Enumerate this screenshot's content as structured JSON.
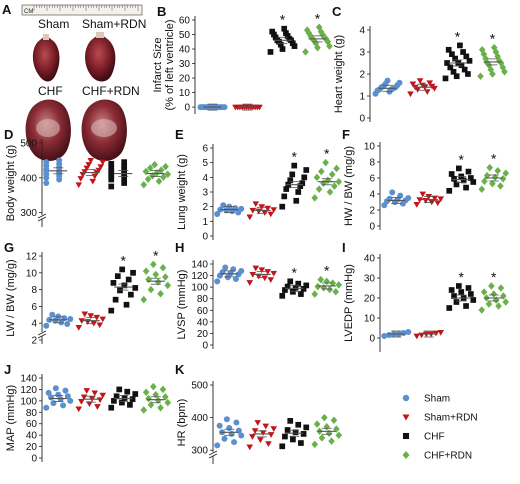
{
  "colors": {
    "sham": "#5b8fd0",
    "sham_rdn": "#c0161a",
    "chf": "#111111",
    "chf_rdn": "#6ab04c"
  },
  "photo": {
    "label": "A",
    "ruler_text": "CM",
    "hearts": [
      "Sham",
      "Sham+RDN",
      "CHF",
      "CHF+RDN"
    ]
  },
  "legend": [
    {
      "name": "Sham",
      "color": "#5b8fd0",
      "shape": "circle"
    },
    {
      "name": "Sham+RDN",
      "color": "#c0161a",
      "shape": "triangle"
    },
    {
      "name": "CHF",
      "color": "#111111",
      "shape": "square"
    },
    {
      "name": "CHF+RDN",
      "color": "#6ab04c",
      "shape": "diamond"
    }
  ],
  "chart_data": [
    {
      "type": "scatter",
      "label": "B",
      "ylabel": "Infarct Size (% of left ventricle)",
      "ylim": [
        -2,
        60
      ],
      "ticks": [
        0,
        10,
        20,
        30,
        40,
        50,
        60
      ],
      "groups": [
        {
          "name": "Sham",
          "mean": 0,
          "values": [
            0,
            0,
            0,
            0,
            0,
            0,
            0,
            0,
            0,
            0,
            0,
            0
          ]
        },
        {
          "name": "Sham+RDN",
          "mean": 0,
          "values": [
            0,
            0,
            0,
            0,
            0,
            0,
            0,
            0,
            0,
            0,
            0,
            0
          ]
        },
        {
          "name": "CHF",
          "mean": 46,
          "star": true,
          "values": [
            38,
            40,
            42,
            43,
            44,
            45,
            46,
            46,
            47,
            48,
            49,
            50,
            51,
            52,
            54
          ]
        },
        {
          "name": "CHF+RDN",
          "mean": 47,
          "star": true,
          "values": [
            38,
            41,
            42,
            44,
            45,
            46,
            47,
            47,
            48,
            49,
            50,
            51,
            52,
            53,
            55
          ]
        }
      ]
    },
    {
      "type": "scatter",
      "label": "C",
      "ylabel": "Heart weight (g)",
      "ylim": [
        0,
        4
      ],
      "ticks": [
        0,
        1,
        2,
        3,
        4
      ],
      "groups": [
        {
          "name": "Sham",
          "mean": 1.35,
          "values": [
            1.1,
            1.2,
            1.25,
            1.3,
            1.3,
            1.35,
            1.4,
            1.4,
            1.45,
            1.5,
            1.55,
            1.6,
            1.7
          ]
        },
        {
          "name": "Sham+RDN",
          "mean": 1.4,
          "values": [
            1.1,
            1.2,
            1.3,
            1.35,
            1.4,
            1.4,
            1.45,
            1.5,
            1.55,
            1.6,
            1.7
          ]
        },
        {
          "name": "CHF",
          "mean": 2.5,
          "star": true,
          "values": [
            1.8,
            1.9,
            2.0,
            2.1,
            2.2,
            2.3,
            2.4,
            2.5,
            2.5,
            2.6,
            2.7,
            2.8,
            2.9,
            3.0,
            3.1,
            3.3
          ]
        },
        {
          "name": "CHF+RDN",
          "mean": 2.55,
          "star": true,
          "values": [
            1.9,
            2.0,
            2.1,
            2.2,
            2.3,
            2.4,
            2.5,
            2.5,
            2.6,
            2.7,
            2.8,
            2.9,
            3.0,
            3.1,
            3.2
          ]
        }
      ]
    },
    {
      "type": "scatter",
      "label": "D",
      "ylabel": "Body weight (g)",
      "ylim": [
        270,
        500
      ],
      "ticks": [
        300,
        400,
        500
      ],
      "axis_break": true,
      "groups": [
        {
          "name": "Sham",
          "mean": 420,
          "values": [
            385,
            395,
            400,
            405,
            410,
            415,
            420,
            420,
            425,
            430,
            435,
            440,
            445,
            450
          ]
        },
        {
          "name": "Sham+RDN",
          "mean": 415,
          "values": [
            380,
            390,
            398,
            405,
            410,
            415,
            418,
            422,
            428,
            432,
            438,
            445,
            450
          ]
        },
        {
          "name": "CHF",
          "mean": 412,
          "values": [
            375,
            385,
            395,
            400,
            405,
            410,
            412,
            415,
            420,
            425,
            430,
            435,
            440,
            445
          ]
        },
        {
          "name": "CHF+RDN",
          "mean": 412,
          "values": [
            380,
            390,
            396,
            402,
            406,
            410,
            414,
            418,
            422,
            428,
            432,
            438
          ]
        }
      ]
    },
    {
      "type": "scatter",
      "label": "E",
      "ylabel": "Lung weight (g)",
      "ylim": [
        0,
        6
      ],
      "ticks": [
        0,
        1,
        2,
        3,
        4,
        5,
        6
      ],
      "groups": [
        {
          "name": "Sham",
          "mean": 1.8,
          "values": [
            1.5,
            1.6,
            1.7,
            1.75,
            1.8,
            1.85,
            1.9,
            2.0,
            2.1
          ]
        },
        {
          "name": "Sham+RDN",
          "mean": 1.75,
          "values": [
            1.3,
            1.5,
            1.6,
            1.7,
            1.75,
            1.8,
            1.9,
            2.0,
            2.2
          ]
        },
        {
          "name": "CHF",
          "mean": 3.5,
          "star": true,
          "values": [
            2.0,
            2.4,
            2.7,
            3.0,
            3.2,
            3.4,
            3.5,
            3.6,
            3.8,
            4.0,
            4.2,
            4.5,
            4.8
          ]
        },
        {
          "name": "CHF+RDN",
          "mean": 3.7,
          "star": true,
          "values": [
            2.6,
            3.0,
            3.2,
            3.4,
            3.6,
            3.7,
            3.8,
            4.0,
            4.2,
            4.4,
            4.6,
            5.0
          ]
        }
      ]
    },
    {
      "type": "scatter",
      "label": "F",
      "ylabel": "HW / BW (mg/g)",
      "ylim": [
        0,
        10
      ],
      "ticks": [
        0,
        2,
        4,
        6,
        8,
        10
      ],
      "groups": [
        {
          "name": "Sham",
          "mean": 3.2,
          "values": [
            2.6,
            2.8,
            3.0,
            3.1,
            3.2,
            3.3,
            3.4,
            3.5,
            3.8,
            4.2
          ]
        },
        {
          "name": "Sham+RDN",
          "mean": 3.3,
          "values": [
            2.7,
            2.9,
            3.0,
            3.2,
            3.3,
            3.4,
            3.5,
            3.7,
            4.0
          ]
        },
        {
          "name": "CHF",
          "mean": 5.8,
          "star": true,
          "values": [
            4.4,
            4.8,
            5.2,
            5.5,
            5.7,
            5.9,
            6.0,
            6.2,
            6.5,
            6.8,
            7.2
          ]
        },
        {
          "name": "CHF+RDN",
          "mean": 6.0,
          "star": true,
          "values": [
            4.6,
            5.0,
            5.3,
            5.6,
            5.9,
            6.1,
            6.3,
            6.6,
            6.9,
            7.3
          ]
        }
      ]
    },
    {
      "type": "scatter",
      "label": "G",
      "ylabel": "LW / BW (mg/g)",
      "ylim": [
        2,
        12
      ],
      "ticks": [
        2,
        4,
        6,
        8,
        10,
        12
      ],
      "axis_break": true,
      "groups": [
        {
          "name": "Sham",
          "mean": 4.4,
          "values": [
            3.7,
            3.9,
            4.1,
            4.3,
            4.4,
            4.5,
            4.6,
            4.8,
            5.0
          ]
        },
        {
          "name": "Sham+RDN",
          "mean": 4.3,
          "values": [
            3.5,
            3.8,
            4.0,
            4.2,
            4.3,
            4.5,
            4.7,
            4.9,
            5.1
          ]
        },
        {
          "name": "CHF",
          "mean": 8.3,
          "star": true,
          "values": [
            5.5,
            6.2,
            6.8,
            7.4,
            7.9,
            8.2,
            8.5,
            8.8,
            9.2,
            9.6,
            10.0,
            10.4
          ]
        },
        {
          "name": "CHF+RDN",
          "mean": 9.0,
          "star": true,
          "values": [
            6.8,
            7.5,
            8.0,
            8.5,
            8.9,
            9.2,
            9.5,
            9.8,
            10.2,
            10.6,
            11.0
          ]
        }
      ]
    },
    {
      "type": "scatter",
      "label": "H",
      "ylabel": "LVSP (mmHg)",
      "ylim": [
        0,
        140
      ],
      "ticks": [
        0,
        20,
        40,
        60,
        80,
        100,
        120,
        140
      ],
      "groups": [
        {
          "name": "Sham",
          "mean": 123,
          "values": [
            110,
            114,
            117,
            120,
            122,
            124,
            126,
            128,
            131,
            134
          ]
        },
        {
          "name": "Sham+RDN",
          "mean": 122,
          "values": [
            108,
            113,
            116,
            119,
            122,
            124,
            127,
            130,
            133
          ]
        },
        {
          "name": "CHF",
          "mean": 98,
          "star": true,
          "values": [
            85,
            88,
            92,
            95,
            97,
            99,
            101,
            103,
            106,
            110
          ]
        },
        {
          "name": "CHF+RDN",
          "mean": 102,
          "star": true,
          "values": [
            88,
            92,
            96,
            99,
            101,
            104,
            107,
            110,
            113
          ]
        }
      ]
    },
    {
      "type": "scatter",
      "label": "I",
      "ylabel": "LVEDP (mmHg)",
      "ylim": [
        -5,
        40
      ],
      "ticks": [
        0,
        10,
        20,
        30,
        40
      ],
      "groups": [
        {
          "name": "Sham",
          "mean": 2,
          "values": [
            1,
            1.5,
            2,
            2,
            2.5,
            3
          ]
        },
        {
          "name": "Sham+RDN",
          "mean": 2,
          "values": [
            1,
            1.5,
            2,
            2,
            2.5,
            2.8
          ]
        },
        {
          "name": "CHF",
          "mean": 20,
          "star": true,
          "values": [
            15,
            16,
            18,
            19,
            20,
            21,
            22,
            23,
            24,
            25,
            26
          ]
        },
        {
          "name": "CHF+RDN",
          "mean": 20,
          "star": true,
          "values": [
            14,
            16,
            17,
            18,
            19,
            20,
            21,
            22,
            23,
            25,
            26
          ]
        }
      ]
    },
    {
      "type": "scatter",
      "label": "J",
      "ylabel": "MAP (mmHg)",
      "ylim": [
        0,
        140
      ],
      "ticks": [
        0,
        20,
        40,
        60,
        80,
        100,
        120,
        140
      ],
      "groups": [
        {
          "name": "Sham",
          "mean": 104,
          "values": [
            88,
            92,
            96,
            100,
            103,
            106,
            108,
            111,
            114,
            118,
            122
          ]
        },
        {
          "name": "Sham+RDN",
          "mean": 103,
          "values": [
            86,
            90,
            95,
            99,
            102,
            104,
            107,
            110,
            114,
            118
          ]
        },
        {
          "name": "CHF",
          "mean": 104,
          "values": [
            88,
            93,
            97,
            100,
            103,
            105,
            108,
            112,
            116,
            120
          ]
        },
        {
          "name": "CHF+RDN",
          "mean": 102,
          "values": [
            84,
            88,
            93,
            97,
            101,
            104,
            107,
            111,
            115,
            120,
            125
          ]
        }
      ]
    },
    {
      "type": "scatter",
      "label": "K",
      "ylabel": "HR (bpm)",
      "ylim": [
        270,
        500
      ],
      "ticks": [
        300,
        400,
        500
      ],
      "axis_break": true,
      "groups": [
        {
          "name": "Sham",
          "mean": 355,
          "values": [
            315,
            325,
            335,
            345,
            350,
            355,
            360,
            368,
            375,
            385,
            395
          ]
        },
        {
          "name": "Sham+RDN",
          "mean": 350,
          "values": [
            310,
            320,
            332,
            342,
            348,
            354,
            360,
            366,
            374,
            385
          ]
        },
        {
          "name": "CHF",
          "mean": 352,
          "values": [
            312,
            322,
            333,
            342,
            350,
            355,
            362,
            370,
            378,
            390
          ]
        },
        {
          "name": "CHF+RDN",
          "mean": 358,
          "values": [
            318,
            328,
            338,
            346,
            352,
            358,
            365,
            372,
            380,
            392,
            400
          ]
        }
      ]
    }
  ]
}
